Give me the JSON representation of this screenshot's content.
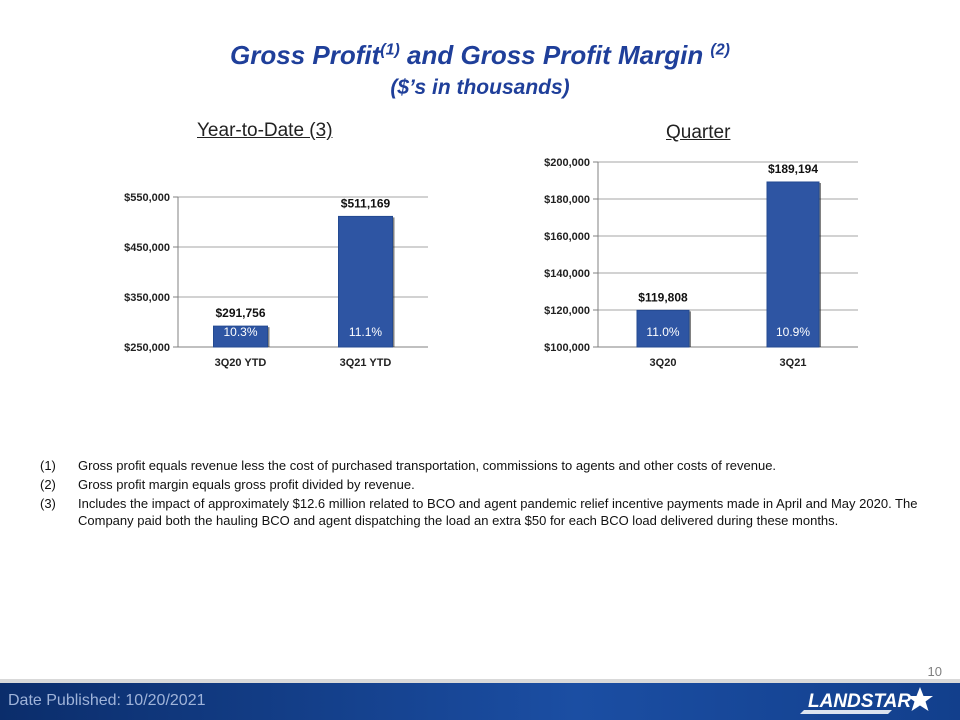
{
  "title": {
    "main": "Gross Profit",
    "sup1": "(1)",
    "mid": " and Gross Profit Margin ",
    "sup2": "(2)",
    "sub": "($’s in thousands)"
  },
  "chart_data": [
    {
      "type": "bar",
      "title": "Year-to-Date (3)",
      "categories": [
        "3Q20 YTD",
        "3Q21 YTD"
      ],
      "values": [
        291756,
        511169
      ],
      "value_labels": [
        "$291,756",
        "$511,169"
      ],
      "margin_labels": [
        "10.3%",
        "11.1%"
      ],
      "ylim": [
        250000,
        550000
      ],
      "yticks": [
        250000,
        350000,
        450000,
        550000
      ],
      "ytick_labels": [
        "$250,000",
        "$350,000",
        "$450,000",
        "$550,000"
      ],
      "grid": true,
      "bar_color": "#2e55a3"
    },
    {
      "type": "bar",
      "title": "Quarter",
      "categories": [
        "3Q20",
        "3Q21"
      ],
      "values": [
        119808,
        189194
      ],
      "value_labels": [
        "$119,808",
        "$189,194"
      ],
      "margin_labels": [
        "11.0%",
        "10.9%"
      ],
      "ylim": [
        100000,
        200000
      ],
      "yticks": [
        100000,
        120000,
        140000,
        160000,
        180000,
        200000
      ],
      "ytick_labels": [
        "$100,000",
        "$120,000",
        "$140,000",
        "$160,000",
        "$180,000",
        "$200,000"
      ],
      "grid": true,
      "bar_color": "#2e55a3"
    }
  ],
  "notes": [
    {
      "num": "(1)",
      "text": "Gross profit equals revenue less the cost of purchased transportation, commissions to agents and other costs of revenue."
    },
    {
      "num": "(2)",
      "text": "Gross profit margin equals gross profit divided by revenue."
    },
    {
      "num": "(3)",
      "text": "Includes the impact of approximately $12.6 million related to BCO and agent pandemic relief incentive payments made in April and May 2020. The Company paid both the hauling BCO and agent dispatching the load an extra $50 for each BCO load delivered during these months."
    }
  ],
  "footer": {
    "published": "Date Published:  10/20/2021",
    "page": "10",
    "logo_text": "LANDSTAR"
  }
}
